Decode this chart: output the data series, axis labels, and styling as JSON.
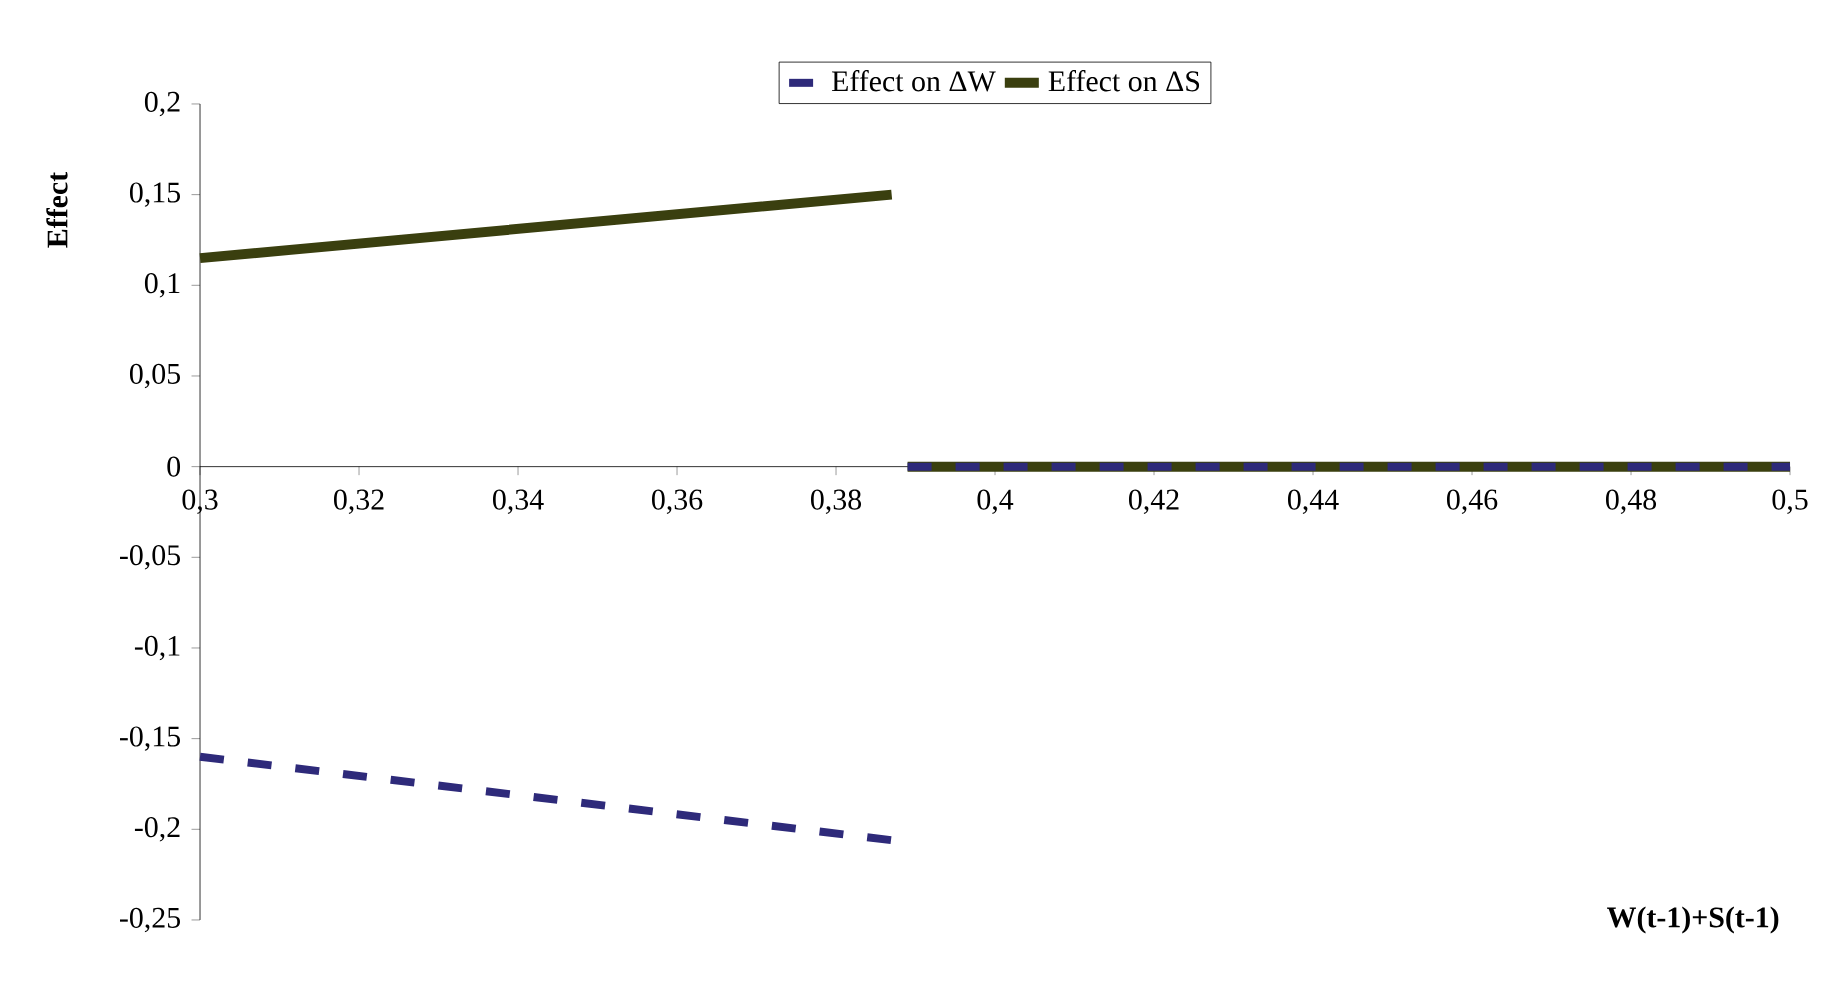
{
  "chart_data": {
    "type": "line",
    "xlabel": "W(t-1)+S(t-1)",
    "ylabel": "Effect",
    "xlim": [
      0.3,
      0.5
    ],
    "ylim": [
      -0.25,
      0.2
    ],
    "xticks": [
      {
        "value": 0.3,
        "label": "0,3"
      },
      {
        "value": 0.32,
        "label": "0,32"
      },
      {
        "value": 0.34,
        "label": "0,34"
      },
      {
        "value": 0.36,
        "label": "0,36"
      },
      {
        "value": 0.38,
        "label": "0,38"
      },
      {
        "value": 0.4,
        "label": "0,4"
      },
      {
        "value": 0.42,
        "label": "0,42"
      },
      {
        "value": 0.44,
        "label": "0,44"
      },
      {
        "value": 0.46,
        "label": "0,46"
      },
      {
        "value": 0.48,
        "label": "0,48"
      },
      {
        "value": 0.5,
        "label": "0,5"
      }
    ],
    "yticks": [
      {
        "value": -0.25,
        "label": "-0,25"
      },
      {
        "value": -0.2,
        "label": "-0,2"
      },
      {
        "value": -0.15,
        "label": "-0,15"
      },
      {
        "value": -0.1,
        "label": "-0,1"
      },
      {
        "value": -0.05,
        "label": "-0,05"
      },
      0,
      {
        "value": 0.05,
        "label": "0,05"
      },
      {
        "value": 0.1,
        "label": "0,1"
      },
      {
        "value": 0.15,
        "label": "0,15"
      },
      {
        "value": 0.2,
        "label": "0,2"
      }
    ],
    "legend": "top",
    "grid": false,
    "series": [
      {
        "name": "Effect on ΔW",
        "color": "#2e2a7a",
        "line_style": "dashed",
        "x": [
          0.3,
          0.387,
          0.3875,
          0.389,
          0.5
        ],
        "values": [
          -0.16,
          -0.206,
          null,
          0,
          0
        ]
      },
      {
        "name": "Effect on ΔS",
        "color": "#3a3f0f",
        "line_style": "solid",
        "x": [
          0.3,
          0.387,
          0.3875,
          0.389,
          0.5
        ],
        "values": [
          0.115,
          0.15,
          null,
          0,
          0
        ]
      }
    ]
  }
}
